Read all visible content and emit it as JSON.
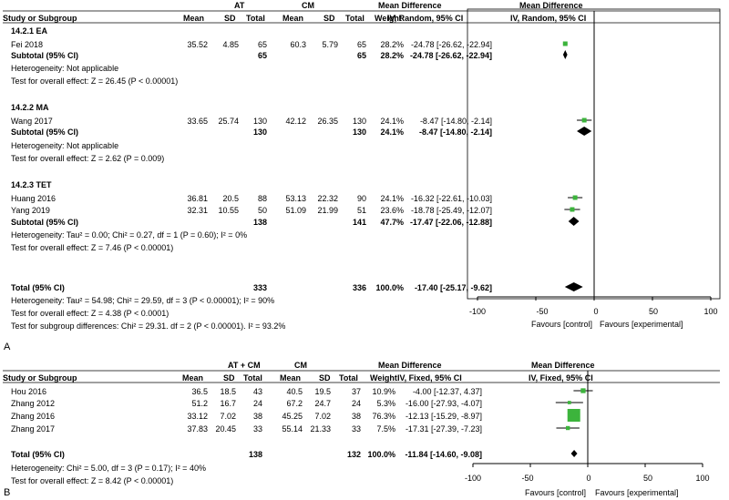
{
  "panels": [
    {
      "letter": "A",
      "header": {
        "col_label": "Study or Subgroup",
        "group1": "AT",
        "group2": "CM",
        "mean": "Mean",
        "sd": "SD",
        "total": "Total",
        "weight": "Weight",
        "md_title": "Mean Difference",
        "md_method": "IV, Random, 95% CI"
      },
      "subgroups": [
        {
          "label": "14.2.1 EA",
          "studies": [
            {
              "name": "Fei 2018",
              "m1": "35.52",
              "sd1": "4.85",
              "n1": "65",
              "m2": "60.3",
              "sd2": "5.79",
              "n2": "65",
              "weight": "28.2%",
              "ci": "-24.78 [-26.62, -22.94]"
            }
          ],
          "subtotal": {
            "label": "Subtotal (95% CI)",
            "n1": "65",
            "n2": "65",
            "weight": "28.2%",
            "ci": "-24.78 [-26.62, -22.94]"
          },
          "heterogeneity": "Heterogeneity: Not applicable",
          "overall": "Test for overall effect: Z = 26.45 (P < 0.00001)"
        },
        {
          "label": "14.2.2 MA",
          "studies": [
            {
              "name": "Wang 2017",
              "m1": "33.65",
              "sd1": "25.74",
              "n1": "130",
              "m2": "42.12",
              "sd2": "26.35",
              "n2": "130",
              "weight": "24.1%",
              "ci": "-8.47 [-14.80, -2.14]"
            }
          ],
          "subtotal": {
            "label": "Subtotal (95% CI)",
            "n1": "130",
            "n2": "130",
            "weight": "24.1%",
            "ci": "-8.47 [-14.80, -2.14]"
          },
          "heterogeneity": "Heterogeneity: Not applicable",
          "overall": "Test for overall effect: Z = 2.62 (P = 0.009)"
        },
        {
          "label": "14.2.3 TET",
          "studies": [
            {
              "name": "Huang 2016",
              "m1": "36.81",
              "sd1": "20.5",
              "n1": "88",
              "m2": "53.13",
              "sd2": "22.32",
              "n2": "90",
              "weight": "24.1%",
              "ci": "-16.32 [-22.61, -10.03]"
            },
            {
              "name": "Yang 2019",
              "m1": "32.31",
              "sd1": "10.55",
              "n1": "50",
              "m2": "51.09",
              "sd2": "21.99",
              "n2": "51",
              "weight": "23.6%",
              "ci": "-18.78 [-25.49, -12.07]"
            }
          ],
          "subtotal": {
            "label": "Subtotal (95% CI)",
            "n1": "138",
            "n2": "141",
            "weight": "47.7%",
            "ci": "-17.47 [-22.06, -12.88]"
          },
          "heterogeneity": "Heterogeneity: Tau² = 0.00; Chi² = 0.27, df = 1 (P = 0.60); I² = 0%",
          "overall": "Test for overall effect: Z = 7.46 (P < 0.00001)"
        }
      ],
      "total": {
        "label": "Total (95% CI)",
        "n1": "333",
        "n2": "336",
        "weight": "100.0%",
        "ci": "-17.40 [-25.17, -9.62]"
      },
      "footer": [
        "Heterogeneity: Tau² = 54.98; Chi² = 29.59, df = 3 (P < 0.00001); I² = 90%",
        "Test for overall effect: Z = 4.38 (P < 0.0001)",
        "Test for subgroup differences: Chi² = 29.31. df = 2 (P < 0.00001). I² = 93.2%"
      ],
      "axis_ticks": [
        "-100",
        "-50",
        "0",
        "50",
        "100"
      ],
      "favours_left": "Favours [control]",
      "favours_right": "Favours [experimental]"
    },
    {
      "letter": "B",
      "header": {
        "col_label": "Study or Subgroup",
        "group1": "AT + CM",
        "group2": "CM",
        "mean": "Mean",
        "sd": "SD",
        "total": "Total",
        "weight": "Weight",
        "md_title": "Mean Difference",
        "md_method": "IV, Fixed, 95% CI"
      },
      "studies": [
        {
          "name": "Hou 2016",
          "m1": "36.5",
          "sd1": "18.5",
          "n1": "43",
          "m2": "40.5",
          "sd2": "19.5",
          "n2": "37",
          "weight": "10.9%",
          "ci": "-4.00 [-12.37, 4.37]"
        },
        {
          "name": "Zhang 2012",
          "m1": "51.2",
          "sd1": "16.7",
          "n1": "24",
          "m2": "67.2",
          "sd2": "24.7",
          "n2": "24",
          "weight": "5.3%",
          "ci": "-16.00 [-27.93, -4.07]"
        },
        {
          "name": "Zhang 2016",
          "m1": "33.12",
          "sd1": "7.02",
          "n1": "38",
          "m2": "45.25",
          "sd2": "7.02",
          "n2": "38",
          "weight": "76.3%",
          "ci": "-12.13 [-15.29, -8.97]"
        },
        {
          "name": "Zhang 2017",
          "m1": "37.83",
          "sd1": "20.45",
          "n1": "33",
          "m2": "55.14",
          "sd2": "21.33",
          "n2": "33",
          "weight": "7.5%",
          "ci": "-17.31 [-27.39, -7.23]"
        }
      ],
      "total": {
        "label": "Total (95% CI)",
        "n1": "138",
        "n2": "132",
        "weight": "100.0%",
        "ci": "-11.84 [-14.60, -9.08]"
      },
      "footer": [
        "Heterogeneity: Chi² = 5.00, df = 3 (P = 0.17); I² = 40%",
        "Test for overall effect: Z = 8.42 (P < 0.00001)"
      ],
      "axis_ticks": [
        "-100",
        "-50",
        "0",
        "50",
        "100"
      ],
      "favours_left": "Favours [control]",
      "favours_right": "Favours [experimental]"
    }
  ],
  "chart_data": [
    {
      "type": "forest",
      "xlim": [
        -100,
        100
      ],
      "ticks": [
        -100,
        -50,
        0,
        50,
        100
      ],
      "studies": [
        {
          "name": "Fei 2018",
          "md": -24.78,
          "lo": -26.62,
          "hi": -22.94,
          "weight": 28.2
        },
        {
          "name": "Wang 2017",
          "md": -8.47,
          "lo": -14.8,
          "hi": -2.14,
          "weight": 24.1
        },
        {
          "name": "Huang 2016",
          "md": -16.32,
          "lo": -22.61,
          "hi": -10.03,
          "weight": 24.1
        },
        {
          "name": "Yang 2019",
          "md": -18.78,
          "lo": -25.49,
          "hi": -12.07,
          "weight": 23.6
        }
      ],
      "diamonds": [
        {
          "label": "Subtotal 14.2.1 EA",
          "md": -24.78,
          "lo": -26.62,
          "hi": -22.94
        },
        {
          "label": "Subtotal 14.2.2 MA",
          "md": -8.47,
          "lo": -14.8,
          "hi": -2.14
        },
        {
          "label": "Subtotal 14.2.3 TET",
          "md": -17.47,
          "lo": -22.06,
          "hi": -12.88
        },
        {
          "label": "Total (95% CI)",
          "md": -17.4,
          "lo": -25.17,
          "hi": -9.62
        }
      ],
      "marker_color": "#3cb43c"
    },
    {
      "type": "forest",
      "xlim": [
        -100,
        100
      ],
      "ticks": [
        -100,
        -50,
        0,
        50,
        100
      ],
      "studies": [
        {
          "name": "Hou 2016",
          "md": -4.0,
          "lo": -12.37,
          "hi": 4.37,
          "weight": 10.9
        },
        {
          "name": "Zhang 2012",
          "md": -16.0,
          "lo": -27.93,
          "hi": -4.07,
          "weight": 5.3
        },
        {
          "name": "Zhang 2016",
          "md": -12.13,
          "lo": -15.29,
          "hi": -8.97,
          "weight": 76.3
        },
        {
          "name": "Zhang 2017",
          "md": -17.31,
          "lo": -27.39,
          "hi": -7.23,
          "weight": 7.5
        }
      ],
      "diamonds": [
        {
          "label": "Total (95% CI)",
          "md": -11.84,
          "lo": -14.6,
          "hi": -9.08
        }
      ],
      "marker_color": "#3cb43c"
    }
  ]
}
